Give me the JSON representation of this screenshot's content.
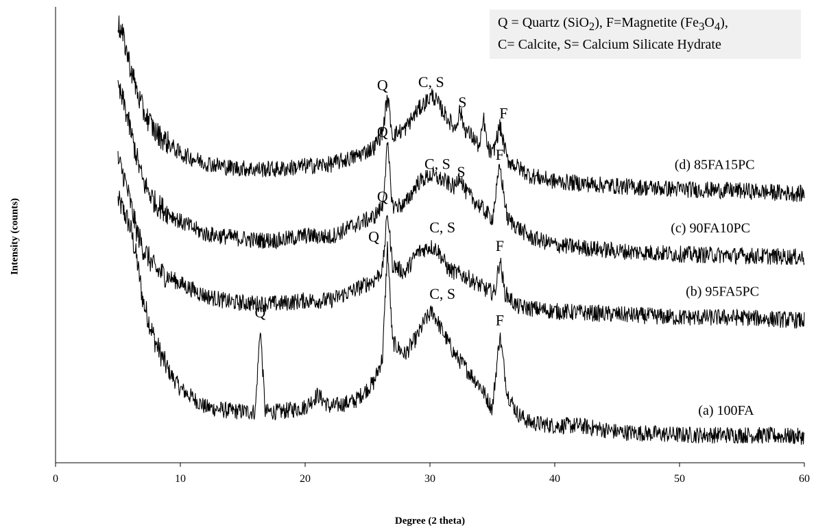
{
  "chart_data": {
    "type": "line",
    "title": "",
    "xlabel": "Degree (2 theta)",
    "ylabel": "Intensity (counts)",
    "xlim": [
      0,
      60
    ],
    "xticks": [
      0,
      10,
      20,
      30,
      40,
      50,
      60
    ],
    "y_ticks_shown": false,
    "grid": false,
    "legend_position": "top-right",
    "legend_lines": [
      {
        "pre": "Q = Quartz (SiO",
        "sub1": "2",
        "mid": "), F=Magnetite (Fe",
        "sub2": "3",
        "mid2": "O",
        "sub3": "4",
        "post": "),"
      },
      {
        "text": "C= Calcite, S= Calcium Silicate Hydrate"
      }
    ],
    "series": [
      {
        "name": "(a) 100FA",
        "color": "#000000",
        "x": [
          5.0,
          5.5,
          6.0,
          6.5,
          7.0,
          8.0,
          9.0,
          10.0,
          12.0,
          14.0,
          16.0,
          16.4,
          16.8,
          18.0,
          20.0,
          21.0,
          22.0,
          24.0,
          25.5,
          26.2,
          26.6,
          27.0,
          28.0,
          29.0,
          29.6,
          30.2,
          31.0,
          32.0,
          33.0,
          34.0,
          35.0,
          35.6,
          36.2,
          37.0,
          38.0,
          40.0,
          42.0,
          45.0,
          50.0,
          55.0,
          60.0
        ],
        "y": [
          2300,
          2220,
          2120,
          1920,
          1650,
          1380,
          1200,
          1080,
          960,
          935,
          930,
          1480,
          930,
          930,
          960,
          1040,
          960,
          1000,
          1120,
          1280,
          2000,
          1380,
          1300,
          1420,
          1520,
          1580,
          1450,
          1300,
          1200,
          1100,
          950,
          1430,
          1050,
          920,
          860,
          840,
          840,
          800,
          780,
          780,
          770
        ]
      },
      {
        "name": "(b) 95FA5PC",
        "color": "#000000",
        "x": [
          5.0,
          5.5,
          6.0,
          6.5,
          7.0,
          8.0,
          10.0,
          12.0,
          14.0,
          16.0,
          18.0,
          20.0,
          22.0,
          24.0,
          25.5,
          26.2,
          26.6,
          27.0,
          28.0,
          29.0,
          30.0,
          30.6,
          31.5,
          33.0,
          34.5,
          35.2,
          35.6,
          36.0,
          37.0,
          40.0,
          45.0,
          50.0,
          55.0,
          60.0
        ],
        "y": [
          2560,
          2450,
          2280,
          2100,
          1990,
          1850,
          1760,
          1680,
          1640,
          1630,
          1630,
          1650,
          1650,
          1720,
          1780,
          1850,
          2220,
          1880,
          1830,
          1960,
          2000,
          1980,
          1850,
          1800,
          1720,
          1700,
          1920,
          1700,
          1610,
          1580,
          1560,
          1540,
          1540,
          1520
        ]
      },
      {
        "name": "(c) 90FA10PC",
        "color": "#000000",
        "x": [
          5.0,
          5.5,
          6.0,
          6.5,
          7.0,
          8.0,
          10.0,
          12.0,
          14.0,
          16.0,
          18.0,
          20.0,
          22.0,
          24.0,
          25.5,
          26.2,
          26.6,
          27.0,
          28.0,
          29.0,
          30.0,
          31.0,
          32.0,
          32.4,
          32.8,
          34.0,
          35.0,
          35.6,
          36.2,
          38.0,
          40.0,
          45.0,
          50.0,
          55.0,
          60.0
        ],
        "y": [
          3020,
          2920,
          2750,
          2580,
          2420,
          2280,
          2160,
          2080,
          2060,
          2040,
          2040,
          2070,
          2060,
          2140,
          2190,
          2260,
          2660,
          2260,
          2270,
          2410,
          2460,
          2430,
          2380,
          2470,
          2360,
          2260,
          2180,
          2520,
          2180,
          2060,
          2010,
          1970,
          1950,
          1940,
          1930
        ]
      },
      {
        "name": "(d) 85FA15PC",
        "color": "#000000",
        "x": [
          5.0,
          5.5,
          6.0,
          6.5,
          7.0,
          8.0,
          10.0,
          12.0,
          14.0,
          16.0,
          18.0,
          20.0,
          22.0,
          24.0,
          25.5,
          26.2,
          26.6,
          27.0,
          28.0,
          29.0,
          30.2,
          31.0,
          32.0,
          32.4,
          32.8,
          33.5,
          34.0,
          34.3,
          34.6,
          35.0,
          35.6,
          36.2,
          38.0,
          40.0,
          45.0,
          50.0,
          55.0,
          60.0
        ],
        "y": [
          3440,
          3330,
          3160,
          3010,
          2880,
          2740,
          2600,
          2540,
          2510,
          2500,
          2500,
          2520,
          2530,
          2580,
          2640,
          2740,
          2970,
          2720,
          2760,
          2880,
          2980,
          2880,
          2760,
          2880,
          2760,
          2700,
          2640,
          2830,
          2640,
          2590,
          2780,
          2560,
          2460,
          2420,
          2390,
          2370,
          2360,
          2340
        ]
      }
    ],
    "series_labels": [
      {
        "text": "(a) 100FA",
        "x": 51.5,
        "y": 910
      },
      {
        "text": "(b) 95FA5PC",
        "x": 50.5,
        "y": 1680
      },
      {
        "text": "(c) 90FA10PC",
        "x": 49.3,
        "y": 2090
      },
      {
        "text": "(d) 85FA15PC",
        "x": 49.6,
        "y": 2500
      }
    ],
    "peak_annotations": [
      {
        "text": "Q",
        "x": 16.4,
        "y": 1540
      },
      {
        "text": "Q",
        "x": 25.5,
        "y": 2030
      },
      {
        "text": "C, S",
        "x": 31.0,
        "y": 1660
      },
      {
        "text": "F",
        "x": 35.6,
        "y": 1490
      },
      {
        "text": "Q",
        "x": 26.2,
        "y": 2290
      },
      {
        "text": "C, S",
        "x": 31.0,
        "y": 2090
      },
      {
        "text": "F",
        "x": 35.6,
        "y": 1970
      },
      {
        "text": "Q",
        "x": 26.2,
        "y": 2710
      },
      {
        "text": "C, S",
        "x": 30.6,
        "y": 2500
      },
      {
        "text": "S",
        "x": 32.5,
        "y": 2450
      },
      {
        "text": "F",
        "x": 35.6,
        "y": 2560
      },
      {
        "text": "Q",
        "x": 26.2,
        "y": 3010
      },
      {
        "text": "C, S",
        "x": 30.1,
        "y": 3030
      },
      {
        "text": "S",
        "x": 32.6,
        "y": 2900
      },
      {
        "text": "F",
        "x": 35.9,
        "y": 2830
      }
    ]
  }
}
